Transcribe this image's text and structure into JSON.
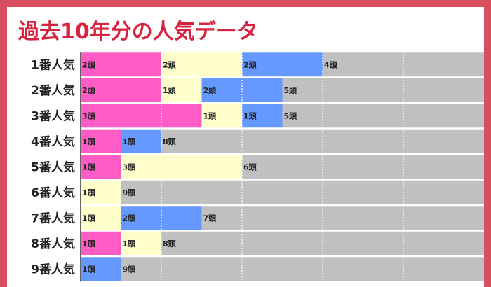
{
  "title": "過去10年分の人気データ",
  "colors": {
    "background": "#d94f60",
    "title": "#d6243f",
    "first": "#ff5cc6",
    "second": "#ffffcc",
    "third": "#6699ff",
    "other": "#c0c0c0"
  },
  "chart_data": {
    "type": "bar",
    "orientation": "horizontal",
    "stacked": true,
    "title": "過去10年分の人気データ",
    "unit": "頭",
    "categories": [
      "1番人気",
      "2番人気",
      "3番人気",
      "4番人気",
      "5番人気",
      "6番人気",
      "7番人気",
      "8番人気",
      "9番人気"
    ],
    "series": [
      {
        "color": "#ff5cc6",
        "values": [
          2,
          2,
          3,
          1,
          1,
          0,
          0,
          1,
          0
        ]
      },
      {
        "color": "#ffffcc",
        "values": [
          2,
          1,
          1,
          0,
          3,
          1,
          1,
          1,
          0
        ]
      },
      {
        "color": "#6699ff",
        "values": [
          2,
          2,
          1,
          1,
          0,
          0,
          2,
          0,
          1
        ]
      },
      {
        "color": "#c0c0c0",
        "values": [
          4,
          5,
          5,
          8,
          6,
          9,
          7,
          8,
          9
        ]
      }
    ],
    "xlim": [
      0,
      10
    ],
    "grid": true
  }
}
